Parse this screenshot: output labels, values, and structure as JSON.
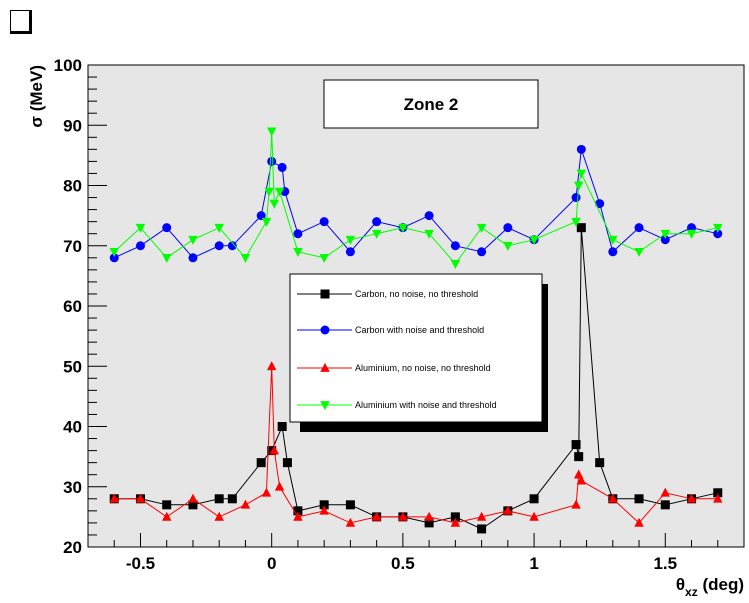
{
  "chart_data": {
    "type": "line",
    "annotation": "Zone 2",
    "xlabel": "θxz (deg)",
    "xlabel_symbol": "θ",
    "xlabel_sub": "xz",
    "xlabel_unit": " (deg)",
    "ylabel": "σ (MeV)",
    "xlim": [
      -0.7,
      1.8
    ],
    "ylim": [
      20,
      100
    ],
    "x_ticks": [
      -0.5,
      0,
      0.5,
      1,
      1.5
    ],
    "x_tick_labels": [
      "-0.5",
      "0",
      "0.5",
      "1",
      "1.5"
    ],
    "y_ticks": [
      20,
      30,
      40,
      50,
      60,
      70,
      80,
      90,
      100
    ],
    "y_tick_labels": [
      "20",
      "30",
      "40",
      "50",
      "60",
      "70",
      "80",
      "90",
      "100"
    ],
    "grid": false,
    "legend_position": "center",
    "background_color": "#e6e6e6",
    "series": [
      {
        "name": "Carbon, no noise, no threshold",
        "color": "#000000",
        "marker": "square",
        "x": [
          -0.6,
          -0.5,
          -0.4,
          -0.3,
          -0.2,
          -0.15,
          -0.04,
          0.0,
          0.04,
          0.06,
          0.1,
          0.2,
          0.3,
          0.4,
          0.5,
          0.6,
          0.7,
          0.8,
          0.9,
          1.0,
          1.16,
          1.17,
          1.18,
          1.25,
          1.3,
          1.4,
          1.5,
          1.6,
          1.7
        ],
        "y": [
          28,
          28,
          27,
          27,
          28,
          28,
          34,
          36,
          40,
          34,
          26,
          27,
          27,
          25,
          25,
          24,
          25,
          23,
          26,
          28,
          37,
          35,
          73,
          34,
          28,
          28,
          27,
          28,
          29
        ]
      },
      {
        "name": "Carbon with noise and threshold",
        "color": "#0000ff",
        "marker": "circle",
        "x": [
          -0.6,
          -0.5,
          -0.4,
          -0.3,
          -0.2,
          -0.15,
          -0.04,
          0.0,
          0.04,
          0.05,
          0.1,
          0.2,
          0.3,
          0.4,
          0.5,
          0.6,
          0.7,
          0.8,
          0.9,
          1.0,
          1.16,
          1.18,
          1.25,
          1.3,
          1.4,
          1.5,
          1.6,
          1.7
        ],
        "y": [
          68,
          70,
          73,
          68,
          70,
          70,
          75,
          84,
          83,
          79,
          72,
          74,
          69,
          74,
          73,
          75,
          70,
          69,
          73,
          71,
          78,
          86,
          77,
          69,
          73,
          71,
          73,
          72
        ]
      },
      {
        "name": "Aluminium, no noise, no threshold",
        "color": "#ff0000",
        "marker": "triangle-up",
        "x": [
          -0.6,
          -0.5,
          -0.4,
          -0.3,
          -0.2,
          -0.1,
          -0.02,
          0.0,
          0.01,
          0.03,
          0.1,
          0.2,
          0.3,
          0.4,
          0.5,
          0.6,
          0.7,
          0.8,
          0.9,
          1.0,
          1.16,
          1.17,
          1.18,
          1.3,
          1.4,
          1.5,
          1.6,
          1.7
        ],
        "y": [
          28,
          28,
          25,
          28,
          25,
          27,
          29,
          50,
          36,
          30,
          25,
          26,
          24,
          25,
          25,
          25,
          24,
          25,
          26,
          25,
          27,
          32,
          31,
          28,
          24,
          29,
          28,
          28
        ]
      },
      {
        "name": "Aluminium with noise and threshold",
        "color": "#00ff00",
        "marker": "triangle-down",
        "x": [
          -0.6,
          -0.5,
          -0.4,
          -0.3,
          -0.2,
          -0.1,
          -0.02,
          -0.01,
          0.0,
          0.01,
          0.03,
          0.1,
          0.2,
          0.3,
          0.4,
          0.5,
          0.6,
          0.7,
          0.8,
          0.9,
          1.0,
          1.16,
          1.17,
          1.18,
          1.3,
          1.4,
          1.5,
          1.6,
          1.7
        ],
        "y": [
          69,
          73,
          68,
          71,
          73,
          68,
          74,
          79,
          89,
          77,
          79,
          69,
          68,
          71,
          72,
          73,
          72,
          67,
          73,
          70,
          71,
          74,
          80,
          82,
          71,
          69,
          72,
          72,
          73
        ]
      }
    ]
  }
}
